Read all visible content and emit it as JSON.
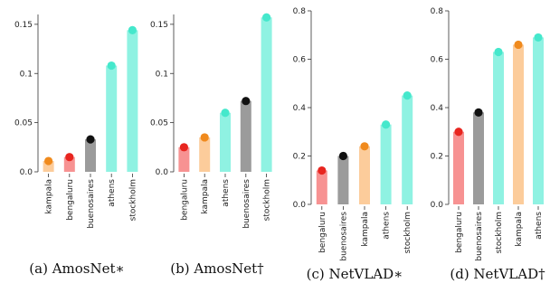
{
  "palette": {
    "red": "#f79292",
    "red_dot": "#e8251f",
    "orange": "#fccc9b",
    "orange_dot": "#f08a1d",
    "gray": "#9b9b9b",
    "gray_dot": "#111111",
    "cyan": "#8ff2e2",
    "cyan_dot": "#45e8cc"
  },
  "chart_data": [
    {
      "type": "bar",
      "caption": "(a) AmosNet∗",
      "categories": [
        "kampala",
        "bengaluru",
        "buenosaires",
        "athens",
        "stockholm"
      ],
      "values": [
        0.011,
        0.015,
        0.033,
        0.108,
        0.144
      ],
      "colors": [
        "orange",
        "red",
        "gray",
        "cyan",
        "cyan"
      ],
      "ylim": [
        0,
        0.16
      ],
      "yticks": [
        0.0,
        0.05,
        0.1,
        0.15
      ],
      "ytick_labels": [
        "0.0",
        "0.05",
        "0.1",
        "0.15"
      ]
    },
    {
      "type": "bar",
      "caption": "(b) AmosNet†",
      "categories": [
        "bengaluru",
        "kampala",
        "athens",
        "buenosaires",
        "stockholm"
      ],
      "values": [
        0.025,
        0.035,
        0.06,
        0.072,
        0.157
      ],
      "colors": [
        "red",
        "orange",
        "cyan",
        "gray",
        "cyan"
      ],
      "ylim": [
        0,
        0.16
      ],
      "yticks": [
        0.0,
        0.05,
        0.1,
        0.15
      ],
      "ytick_labels": [
        "0.0",
        "0.05",
        "0.1",
        "0.15"
      ]
    },
    {
      "type": "bar",
      "caption": "(c) NetVLAD∗",
      "categories": [
        "bengaluru",
        "buenosaires",
        "kampala",
        "athens",
        "stockholm"
      ],
      "values": [
        0.14,
        0.2,
        0.24,
        0.33,
        0.45
      ],
      "colors": [
        "red",
        "gray",
        "orange",
        "cyan",
        "cyan"
      ],
      "ylim": [
        0,
        0.8
      ],
      "yticks": [
        0.0,
        0.2,
        0.4,
        0.6,
        0.8
      ],
      "ytick_labels": [
        "0.0",
        "0.2",
        "0.4",
        "0.6",
        "0.8"
      ]
    },
    {
      "type": "bar",
      "caption": "(d) NetVLAD†",
      "categories": [
        "bengaluru",
        "buenosaires",
        "stockholm",
        "kampala",
        "athens"
      ],
      "values": [
        0.3,
        0.38,
        0.63,
        0.66,
        0.69
      ],
      "colors": [
        "red",
        "gray",
        "cyan",
        "orange",
        "cyan"
      ],
      "ylim": [
        0,
        0.8
      ],
      "yticks": [
        0.0,
        0.2,
        0.4,
        0.6,
        0.8
      ],
      "ytick_labels": [
        "0.0",
        "0.2",
        "0.4",
        "0.6",
        "0.8"
      ]
    }
  ]
}
